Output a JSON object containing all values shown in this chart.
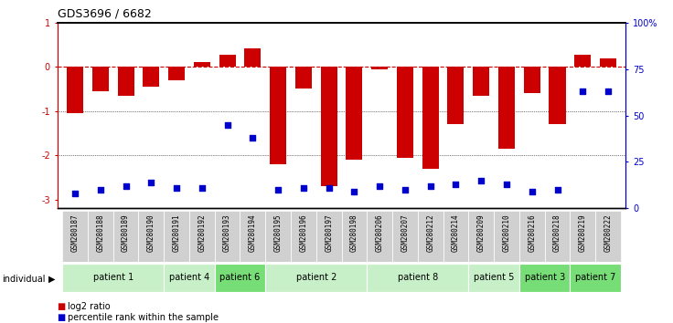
{
  "title": "GDS3696 / 6682",
  "samples": [
    "GSM280187",
    "GSM280188",
    "GSM280189",
    "GSM280190",
    "GSM280191",
    "GSM280192",
    "GSM280193",
    "GSM280194",
    "GSM280195",
    "GSM280196",
    "GSM280197",
    "GSM280198",
    "GSM280206",
    "GSM280207",
    "GSM280212",
    "GSM280214",
    "GSM280209",
    "GSM280210",
    "GSM280216",
    "GSM280218",
    "GSM280219",
    "GSM280222"
  ],
  "log2_ratio": [
    -1.05,
    -0.55,
    -0.65,
    -0.45,
    -0.3,
    0.1,
    0.28,
    0.42,
    -2.2,
    -0.5,
    -2.7,
    -2.1,
    -0.05,
    -2.05,
    -2.3,
    -1.3,
    -0.65,
    -1.85,
    -0.6,
    -1.3,
    0.27,
    0.2
  ],
  "percentile_rank": [
    8,
    10,
    12,
    14,
    11,
    11,
    45,
    38,
    10,
    11,
    11,
    9,
    12,
    10,
    12,
    13,
    15,
    13,
    9,
    10,
    63,
    63
  ],
  "patients": [
    {
      "label": "patient 1",
      "indices": [
        0,
        1,
        2,
        3
      ],
      "color": "#c8f0c8"
    },
    {
      "label": "patient 4",
      "indices": [
        4,
        5
      ],
      "color": "#c8f0c8"
    },
    {
      "label": "patient 6",
      "indices": [
        6,
        7
      ],
      "color": "#77dd77"
    },
    {
      "label": "patient 2",
      "indices": [
        8,
        9,
        10,
        11
      ],
      "color": "#c8f0c8"
    },
    {
      "label": "patient 8",
      "indices": [
        12,
        13,
        14,
        15
      ],
      "color": "#c8f0c8"
    },
    {
      "label": "patient 5",
      "indices": [
        16,
        17
      ],
      "color": "#c8f0c8"
    },
    {
      "label": "patient 3",
      "indices": [
        18,
        19
      ],
      "color": "#77dd77"
    },
    {
      "label": "patient 7",
      "indices": [
        20,
        21
      ],
      "color": "#77dd77"
    }
  ],
  "bar_color": "#cc0000",
  "dot_color": "#0000cc",
  "ylim_left": [
    -3.2,
    1.0
  ],
  "ylim_right": [
    0,
    100
  ],
  "yticks_left": [
    1,
    0,
    -1,
    -2,
    -3
  ],
  "yticks_right": [
    0,
    25,
    50,
    75,
    100
  ],
  "yticklabels_right": [
    "0",
    "25",
    "50",
    "75",
    "100%"
  ]
}
